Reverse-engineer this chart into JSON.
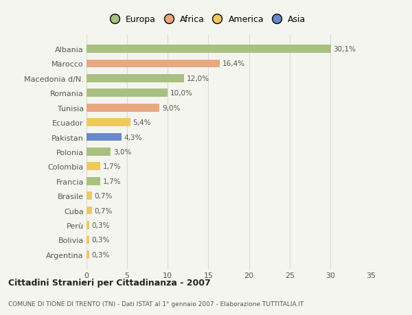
{
  "countries": [
    "Albania",
    "Marocco",
    "Macedonia d/N.",
    "Romania",
    "Tunisia",
    "Ecuador",
    "Pakistan",
    "Polonia",
    "Colombia",
    "Francia",
    "Brasile",
    "Cuba",
    "Perù",
    "Bolivia",
    "Argentina"
  ],
  "values": [
    30.1,
    16.4,
    12.0,
    10.0,
    9.0,
    5.4,
    4.3,
    3.0,
    1.7,
    1.7,
    0.7,
    0.7,
    0.3,
    0.3,
    0.3
  ],
  "labels": [
    "30,1%",
    "16,4%",
    "12,0%",
    "10,0%",
    "9,0%",
    "5,4%",
    "4,3%",
    "3,0%",
    "1,7%",
    "1,7%",
    "0,7%",
    "0,7%",
    "0,3%",
    "0,3%",
    "0,3%"
  ],
  "continents": [
    "Europa",
    "Africa",
    "Europa",
    "Europa",
    "Africa",
    "America",
    "Asia",
    "Europa",
    "America",
    "Europa",
    "America",
    "America",
    "America",
    "America",
    "America"
  ],
  "colors": {
    "Europa": "#a8c080",
    "Africa": "#e8a880",
    "America": "#f0c860",
    "Asia": "#6888c8"
  },
  "xlim": [
    0,
    35
  ],
  "xticks": [
    0,
    5,
    10,
    15,
    20,
    25,
    30,
    35
  ],
  "title": "Cittadini Stranieri per Cittadinanza - 2007",
  "subtitle": "COMUNE DI TIONE DI TRENTO (TN) - Dati ISTAT al 1° gennaio 2007 - Elaborazione TUTTITALIA.IT",
  "bg_color": "#f5f5f0",
  "grid_color": "#d8d8d8",
  "bar_height": 0.55,
  "legend_order": [
    "Europa",
    "Africa",
    "America",
    "Asia"
  ]
}
